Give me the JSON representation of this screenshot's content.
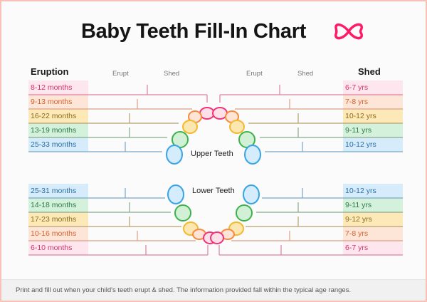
{
  "title": "Baby Teeth Fill-In Chart",
  "logo": "heart-infinity-logo",
  "headers": {
    "eruption": "Eruption",
    "shed": "Shed",
    "erupt_col": "Erupt",
    "shed_col": "Shed"
  },
  "upper": {
    "label": "Upper Teeth",
    "rows": [
      {
        "eruption": "8-12 months",
        "shed": "6-7 yrs",
        "color": "pink"
      },
      {
        "eruption": "9-13 months",
        "shed": "7-8 yrs",
        "color": "orange"
      },
      {
        "eruption": "16-22 months",
        "shed": "10-12 yrs",
        "color": "yellow"
      },
      {
        "eruption": "13-19 months",
        "shed": "9-11 yrs",
        "color": "green"
      },
      {
        "eruption": "25-33 months",
        "shed": "10-12 yrs",
        "color": "blue"
      }
    ]
  },
  "lower": {
    "label": "Lower Teeth",
    "rows": [
      {
        "eruption": "25-31 months",
        "shed": "10-12 yrs",
        "color": "blue"
      },
      {
        "eruption": "14-18 months",
        "shed": "9-11 yrs",
        "color": "green"
      },
      {
        "eruption": "17-23 months",
        "shed": "9-12 yrs",
        "color": "yellow"
      },
      {
        "eruption": "10-16 months",
        "shed": "7-8 yrs",
        "color": "orange"
      },
      {
        "eruption": "6-10 months",
        "shed": "6-7 yrs",
        "color": "pink"
      }
    ]
  },
  "colors": {
    "pink": {
      "text": "#d6336c",
      "bg": "#fde6ee",
      "line": "#e07fa0",
      "stroke": "#f0357a",
      "fill": "#fde0e8"
    },
    "orange": {
      "text": "#d9622b",
      "bg": "#fde5d8",
      "line": "#dba088",
      "stroke": "#f68b3c",
      "fill": "#fde4d6"
    },
    "yellow": {
      "text": "#8a6d1e",
      "bg": "#fde9b8",
      "line": "#b8a070",
      "stroke": "#f5b82e",
      "fill": "#fde7b0"
    },
    "green": {
      "text": "#2f7a45",
      "bg": "#d4f1dc",
      "line": "#88aa8e",
      "stroke": "#3cb34a",
      "fill": "#d2f0d6"
    },
    "blue": {
      "text": "#2b6ea5",
      "bg": "#d6ecfb",
      "line": "#7aa7c7",
      "stroke": "#38a4e8",
      "fill": "#d4ecfb"
    },
    "brand": "#ff1a66"
  },
  "footer": "Print and fill out when your child's teeth erupt & shed. The information provided fall within the typical age ranges."
}
